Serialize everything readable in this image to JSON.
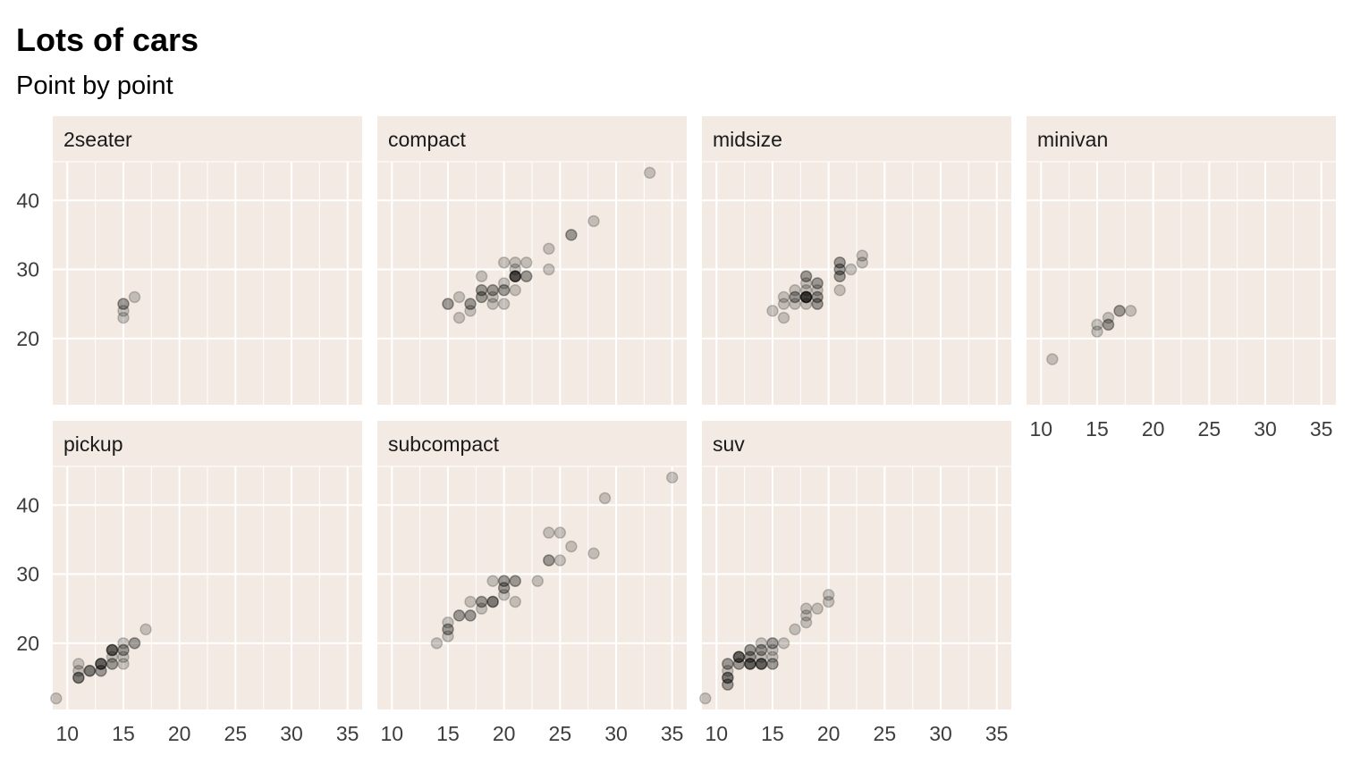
{
  "chart_data": {
    "type": "scatter",
    "title": "Lots of cars",
    "subtitle": "Point by point",
    "xlabel": "",
    "ylabel": "",
    "xlim": [
      8.7,
      36.3
    ],
    "ylim": [
      10.4,
      45.6
    ],
    "xticks": [
      10,
      15,
      20,
      25,
      30,
      35
    ],
    "yticks": [
      20,
      30,
      40
    ],
    "grid": true,
    "colors": {
      "panel_bg": "#f3ebe3",
      "grid": "#ffffff",
      "point": "#000000"
    },
    "point_alpha": 0.2,
    "facets": [
      {
        "name": "2seater",
        "x": [
          15,
          15,
          15,
          15,
          16
        ],
        "y": [
          23,
          24,
          25,
          25,
          26
        ]
      },
      {
        "name": "compact",
        "x": [
          15,
          15,
          16,
          16,
          17,
          17,
          17,
          18,
          18,
          18,
          18,
          18,
          19,
          19,
          19,
          19,
          20,
          20,
          20,
          20,
          20,
          21,
          21,
          21,
          21,
          21,
          21,
          21,
          21,
          22,
          22,
          22,
          24,
          24,
          26,
          26,
          28,
          33
        ],
        "y": [
          25,
          25,
          23,
          26,
          24,
          25,
          25,
          26,
          26,
          27,
          27,
          29,
          25,
          26,
          27,
          27,
          25,
          27,
          27,
          28,
          31,
          27,
          29,
          29,
          29,
          29,
          29,
          30,
          31,
          29,
          29,
          31,
          30,
          33,
          35,
          35,
          37,
          44
        ]
      },
      {
        "name": "midsize",
        "x": [
          15,
          16,
          16,
          16,
          17,
          17,
          17,
          17,
          18,
          18,
          18,
          18,
          18,
          18,
          18,
          18,
          18,
          18,
          18,
          19,
          19,
          19,
          19,
          19,
          19,
          19,
          21,
          21,
          21,
          21,
          21,
          21,
          21,
          22,
          23,
          23
        ],
        "y": [
          24,
          23,
          25,
          26,
          25,
          26,
          26,
          27,
          25,
          26,
          26,
          26,
          26,
          26,
          26,
          27,
          28,
          29,
          29,
          25,
          25,
          26,
          26,
          27,
          28,
          28,
          27,
          29,
          29,
          30,
          30,
          31,
          31,
          30,
          31,
          32
        ]
      },
      {
        "name": "minivan",
        "x": [
          11,
          15,
          15,
          16,
          16,
          16,
          17,
          17,
          18
        ],
        "y": [
          17,
          21,
          22,
          22,
          22,
          23,
          24,
          24,
          24
        ]
      },
      {
        "name": "pickup",
        "x": [
          9,
          11,
          11,
          11,
          11,
          11,
          12,
          12,
          12,
          13,
          13,
          13,
          13,
          13,
          13,
          14,
          14,
          14,
          14,
          14,
          14,
          14,
          15,
          15,
          15,
          15,
          15,
          16,
          16,
          17
        ],
        "y": [
          12,
          15,
          15,
          15,
          16,
          17,
          16,
          16,
          16,
          16,
          16,
          17,
          17,
          17,
          17,
          17,
          17,
          18,
          19,
          19,
          19,
          19,
          17,
          18,
          19,
          19,
          20,
          20,
          20,
          22
        ]
      },
      {
        "name": "subcompact",
        "x": [
          14,
          15,
          15,
          15,
          15,
          16,
          16,
          17,
          17,
          17,
          18,
          18,
          18,
          19,
          19,
          19,
          19,
          20,
          20,
          20,
          20,
          20,
          21,
          21,
          21,
          23,
          24,
          24,
          24,
          25,
          25,
          26,
          28,
          29,
          35
        ],
        "y": [
          20,
          21,
          22,
          22,
          23,
          24,
          24,
          24,
          24,
          26,
          25,
          26,
          26,
          26,
          26,
          26,
          29,
          27,
          28,
          28,
          29,
          29,
          26,
          29,
          29,
          29,
          32,
          32,
          36,
          32,
          36,
          34,
          33,
          41,
          44
        ]
      },
      {
        "name": "suv",
        "x": [
          9,
          11,
          11,
          11,
          11,
          11,
          11,
          11,
          11,
          12,
          12,
          12,
          12,
          12,
          12,
          13,
          13,
          13,
          13,
          13,
          13,
          13,
          13,
          14,
          14,
          14,
          14,
          14,
          14,
          14,
          14,
          15,
          15,
          15,
          15,
          15,
          15,
          16,
          17,
          18,
          18,
          18,
          19,
          20,
          20
        ],
        "y": [
          12,
          14,
          14,
          15,
          15,
          15,
          16,
          17,
          17,
          17,
          17,
          18,
          18,
          18,
          18,
          17,
          17,
          17,
          17,
          18,
          18,
          19,
          19,
          17,
          17,
          17,
          17,
          18,
          19,
          19,
          20,
          17,
          17,
          18,
          19,
          20,
          20,
          20,
          22,
          23,
          24,
          25,
          25,
          26,
          27
        ]
      }
    ]
  }
}
